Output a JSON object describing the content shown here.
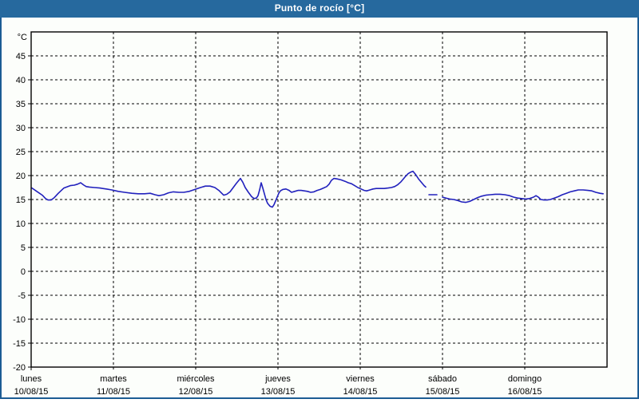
{
  "window": {
    "title": "Punto de rocío [°C]"
  },
  "colors": {
    "title_bar": "#26699e",
    "page_border": "#1c5c94",
    "background": "#fcfefb",
    "line": "#2121bd",
    "grid": "#000000",
    "text": "#000000"
  },
  "chart_data": {
    "type": "line",
    "title": "Punto de rocío [°C]",
    "unit_label": "°C",
    "ylim": [
      -20,
      50
    ],
    "xlim_days": [
      0,
      7
    ],
    "ytick_step": 5,
    "y_ticks": [
      45,
      40,
      35,
      30,
      25,
      20,
      15,
      10,
      5,
      0,
      -5,
      -10,
      -15,
      -20
    ],
    "grid_style": "dashed",
    "legend": "none",
    "x_days": [
      {
        "name": "lunes",
        "date": "10/08/15"
      },
      {
        "name": "martes",
        "date": "11/08/15"
      },
      {
        "name": "miércoles",
        "date": "12/08/15"
      },
      {
        "name": "jueves",
        "date": "13/08/15"
      },
      {
        "name": "viernes",
        "date": "14/08/15"
      },
      {
        "name": "sábado",
        "date": "15/08/15"
      },
      {
        "name": "domingo",
        "date": "16/08/15"
      }
    ],
    "series": [
      {
        "name": "Punto de rocío",
        "color": "#2121bd",
        "units": "°C",
        "segments": [
          [
            [
              0.01,
              17.4
            ],
            [
              0.068,
              16.7
            ],
            [
              0.136,
              15.9
            ],
            [
              0.175,
              15.2
            ],
            [
              0.204,
              14.9
            ],
            [
              0.243,
              14.9
            ],
            [
              0.282,
              15.4
            ],
            [
              0.33,
              16.3
            ],
            [
              0.398,
              17.4
            ],
            [
              0.476,
              17.9
            ],
            [
              0.524,
              18
            ],
            [
              0.563,
              18.2
            ],
            [
              0.602,
              18.5
            ],
            [
              0.641,
              18
            ],
            [
              0.67,
              17.7
            ],
            [
              0.709,
              17.6
            ],
            [
              0.767,
              17.5
            ],
            [
              0.835,
              17.4
            ],
            [
              0.913,
              17.2
            ],
            [
              0.981,
              17
            ],
            [
              1.058,
              16.7
            ],
            [
              1.136,
              16.5
            ],
            [
              1.223,
              16.3
            ],
            [
              1.301,
              16.2
            ],
            [
              1.379,
              16.2
            ],
            [
              1.447,
              16.3
            ],
            [
              1.505,
              16
            ],
            [
              1.553,
              15.8
            ],
            [
              1.612,
              16
            ],
            [
              1.67,
              16.4
            ],
            [
              1.728,
              16.6
            ],
            [
              1.796,
              16.5
            ],
            [
              1.854,
              16.5
            ],
            [
              1.922,
              16.7
            ],
            [
              1.99,
              17.1
            ],
            [
              2.058,
              17.5
            ],
            [
              2.117,
              17.8
            ],
            [
              2.175,
              17.8
            ],
            [
              2.233,
              17.5
            ],
            [
              2.282,
              16.9
            ],
            [
              2.34,
              15.9
            ],
            [
              2.379,
              16.1
            ],
            [
              2.417,
              16.6
            ],
            [
              2.456,
              17.5
            ],
            [
              2.495,
              18.4
            ],
            [
              2.524,
              19
            ],
            [
              2.544,
              19.4
            ],
            [
              2.573,
              18.6
            ],
            [
              2.602,
              17.5
            ],
            [
              2.641,
              16.5
            ],
            [
              2.68,
              15.6
            ],
            [
              2.709,
              15.2
            ],
            [
              2.738,
              15.3
            ],
            [
              2.757,
              15.8
            ],
            [
              2.777,
              17
            ],
            [
              2.796,
              18.5
            ],
            [
              2.816,
              17.4
            ],
            [
              2.835,
              16.2
            ],
            [
              2.854,
              15
            ],
            [
              2.874,
              14.2
            ],
            [
              2.903,
              13.6
            ],
            [
              2.932,
              13.4
            ],
            [
              2.951,
              13.9
            ],
            [
              2.971,
              14.7
            ],
            [
              2.99,
              15.5
            ],
            [
              3.01,
              16.3
            ],
            [
              3.029,
              16.8
            ],
            [
              3.058,
              17.1
            ],
            [
              3.097,
              17.2
            ],
            [
              3.136,
              16.9
            ],
            [
              3.165,
              16.5
            ],
            [
              3.204,
              16.7
            ],
            [
              3.243,
              16.9
            ],
            [
              3.282,
              16.9
            ],
            [
              3.32,
              16.8
            ],
            [
              3.359,
              16.7
            ],
            [
              3.398,
              16.5
            ],
            [
              3.437,
              16.6
            ],
            [
              3.476,
              16.9
            ],
            [
              3.515,
              17.1
            ],
            [
              3.553,
              17.4
            ],
            [
              3.592,
              17.7
            ],
            [
              3.621,
              18.2
            ],
            [
              3.65,
              19
            ],
            [
              3.68,
              19.4
            ],
            [
              3.718,
              19.3
            ],
            [
              3.767,
              19.1
            ],
            [
              3.816,
              18.8
            ],
            [
              3.854,
              18.5
            ],
            [
              3.893,
              18.3
            ],
            [
              3.932,
              17.9
            ],
            [
              3.971,
              17.5
            ],
            [
              4.01,
              17.2
            ],
            [
              4.049,
              16.9
            ],
            [
              4.078,
              16.8
            ],
            [
              4.117,
              17
            ],
            [
              4.155,
              17.2
            ],
            [
              4.194,
              17.3
            ],
            [
              4.243,
              17.3
            ],
            [
              4.291,
              17.3
            ],
            [
              4.34,
              17.4
            ],
            [
              4.379,
              17.5
            ],
            [
              4.417,
              17.7
            ],
            [
              4.456,
              18.1
            ],
            [
              4.495,
              18.7
            ],
            [
              4.524,
              19.3
            ],
            [
              4.553,
              19.9
            ],
            [
              4.583,
              20.4
            ],
            [
              4.612,
              20.7
            ],
            [
              4.641,
              20.9
            ],
            [
              4.67,
              20.3
            ],
            [
              4.709,
              19.3
            ],
            [
              4.748,
              18.5
            ],
            [
              4.777,
              17.9
            ],
            [
              4.796,
              17.6
            ]
          ],
          [
            [
              4.835,
              16
            ],
            [
              4.932,
              16
            ]
          ],
          [
            [
              5,
              15.5
            ],
            [
              5.039,
              15.3
            ],
            [
              5.087,
              15.1
            ],
            [
              5.136,
              15
            ],
            [
              5.184,
              14.8
            ],
            [
              5.233,
              14.5
            ],
            [
              5.282,
              14.4
            ],
            [
              5.33,
              14.6
            ],
            [
              5.379,
              15
            ],
            [
              5.427,
              15.4
            ],
            [
              5.476,
              15.7
            ],
            [
              5.524,
              15.9
            ],
            [
              5.583,
              16
            ],
            [
              5.641,
              16.1
            ],
            [
              5.699,
              16.1
            ],
            [
              5.757,
              16
            ],
            [
              5.816,
              15.8
            ],
            [
              5.864,
              15.5
            ],
            [
              5.913,
              15.3
            ],
            [
              5.961,
              15.2
            ],
            [
              6.01,
              15.1
            ],
            [
              6.058,
              15.2
            ],
            [
              6.107,
              15.5
            ],
            [
              6.136,
              15.8
            ],
            [
              6.165,
              15.5
            ],
            [
              6.194,
              15
            ],
            [
              6.233,
              14.9
            ],
            [
              6.272,
              14.9
            ],
            [
              6.311,
              15
            ],
            [
              6.359,
              15.3
            ],
            [
              6.408,
              15.6
            ],
            [
              6.456,
              16
            ],
            [
              6.505,
              16.3
            ],
            [
              6.553,
              16.6
            ],
            [
              6.602,
              16.8
            ],
            [
              6.65,
              17
            ],
            [
              6.709,
              17
            ],
            [
              6.767,
              16.9
            ],
            [
              6.816,
              16.8
            ],
            [
              6.864,
              16.5
            ],
            [
              6.913,
              16.3
            ],
            [
              6.952,
              16.2
            ]
          ]
        ]
      }
    ]
  }
}
